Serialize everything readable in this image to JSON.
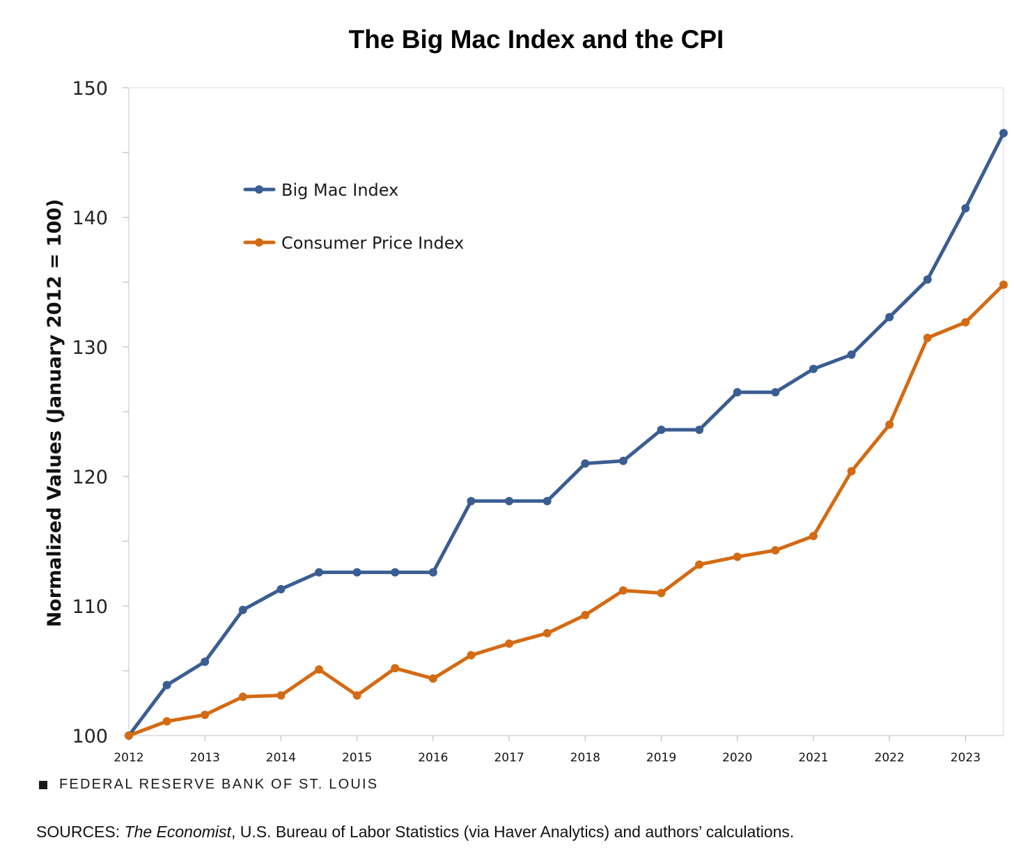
{
  "chart_data": {
    "type": "line",
    "title": "The Big Mac Index and the CPI",
    "ylabel": "Normalized Values (January 2012 = 100)",
    "xlabel": "",
    "ylim": [
      100,
      150
    ],
    "yticks": [
      "100",
      "110",
      "120",
      "130",
      "140",
      "150"
    ],
    "xlim": [
      2012,
      2023.5
    ],
    "xticks": [
      "2012",
      "2013",
      "2014",
      "2015",
      "2016",
      "2017",
      "2018",
      "2019",
      "2020",
      "2021",
      "2022",
      "2023"
    ],
    "grid": false,
    "legend": "upper-left",
    "x": [
      2012.0,
      2012.5,
      2013.0,
      2013.5,
      2014.0,
      2014.5,
      2015.0,
      2015.5,
      2016.0,
      2016.5,
      2017.0,
      2017.5,
      2018.0,
      2018.5,
      2019.0,
      2019.5,
      2020.0,
      2020.5,
      2021.0,
      2021.5,
      2022.0,
      2022.5,
      2023.0,
      2023.5
    ],
    "series": [
      {
        "name": "Big Mac Index",
        "color": "#3a5d92",
        "values": [
          100.0,
          103.9,
          105.7,
          109.7,
          111.3,
          112.6,
          112.6,
          112.6,
          112.6,
          118.1,
          118.1,
          118.1,
          121.0,
          121.2,
          123.6,
          123.6,
          126.5,
          126.5,
          128.3,
          129.4,
          132.3,
          135.2,
          140.7,
          146.5
        ]
      },
      {
        "name": "Consumer Price Index",
        "color": "#d46a13",
        "values": [
          100.0,
          101.1,
          101.6,
          103.0,
          103.1,
          105.1,
          103.1,
          105.2,
          104.4,
          106.2,
          107.1,
          107.9,
          109.3,
          111.2,
          111.0,
          113.2,
          113.8,
          114.3,
          115.4,
          120.4,
          124.0,
          130.7,
          131.9,
          134.8
        ]
      }
    ]
  },
  "footer": {
    "organization": "FEDERAL RESERVE BANK OF ST. LOUIS",
    "sources_prefix": "SOURCES: ",
    "sources_italic": "The Economist",
    "sources_rest": ", U.S. Bureau of Labor Statistics (via Haver Analytics) and authors’ calculations."
  }
}
